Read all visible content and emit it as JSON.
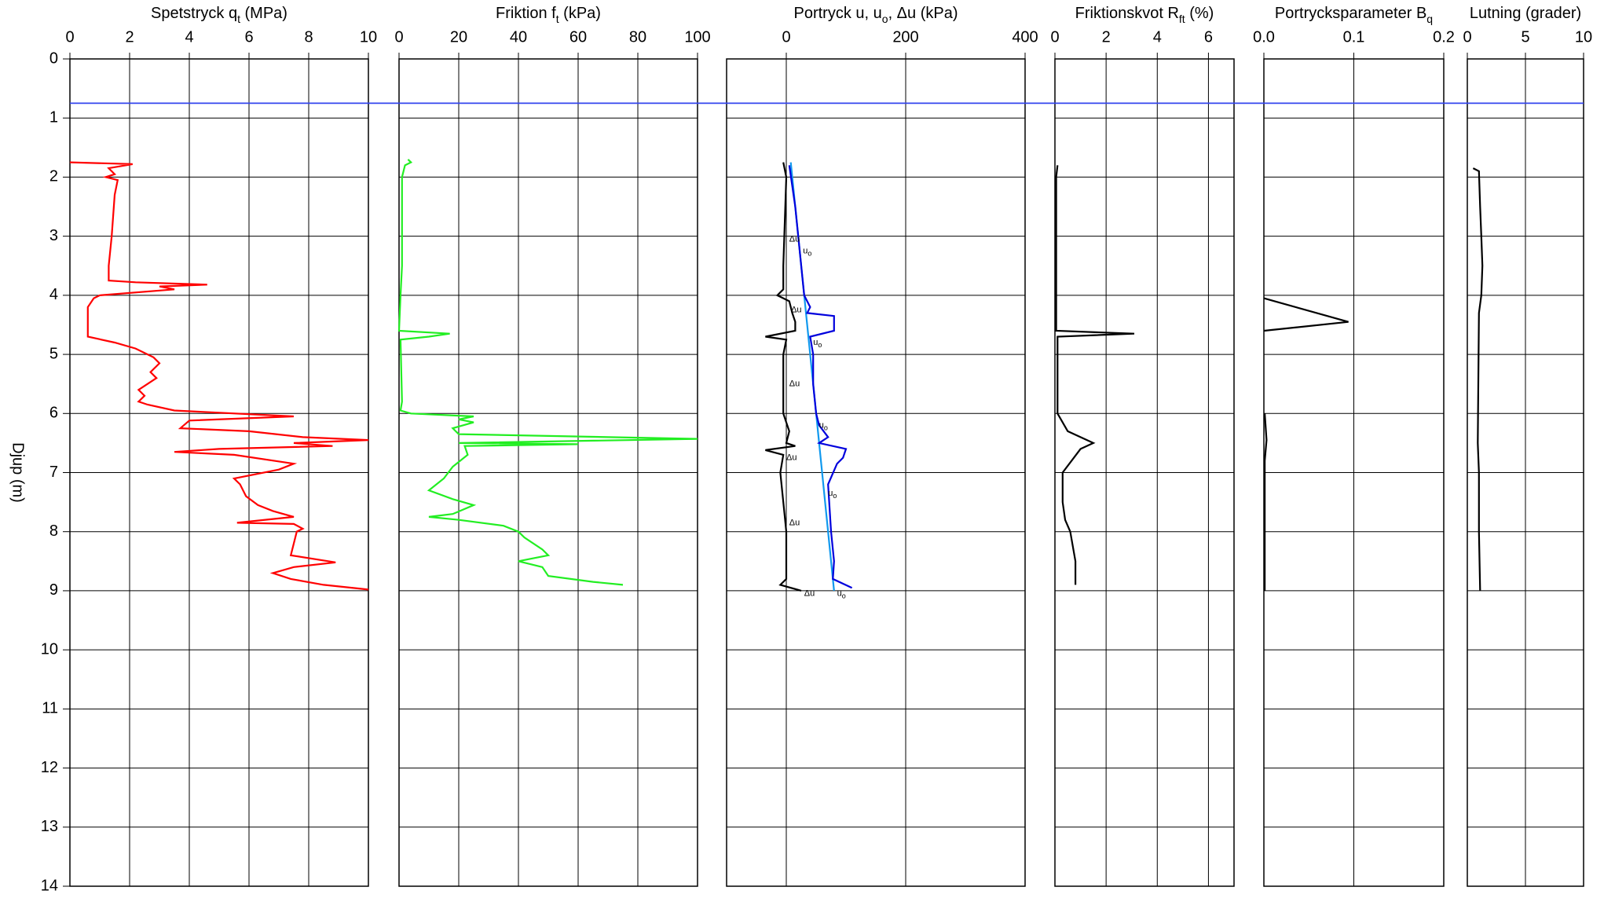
{
  "chart_data": [
    {
      "type": "line",
      "title": [
        "Spetstryck q",
        "t",
        "  (MPa)"
      ],
      "ylabel": "Djup  (m)",
      "xlim": [
        0,
        10
      ],
      "xticks": [
        0,
        2,
        4,
        6,
        8,
        10
      ],
      "ylim": [
        0,
        14
      ],
      "yticks": [
        0,
        1,
        2,
        3,
        4,
        5,
        6,
        7,
        8,
        9,
        10,
        11,
        12,
        13,
        14
      ],
      "grid": true,
      "reference_line": 0.75,
      "reference_color": "#3344ee",
      "series": [
        {
          "color": "#ff0000",
          "depth": [
            1.75,
            1.78,
            1.85,
            1.95,
            2.0,
            2.05,
            2.3,
            3.0,
            3.5,
            3.75,
            3.78,
            3.82,
            3.85,
            3.9,
            4.0,
            4.05,
            4.2,
            4.7,
            4.8,
            4.9,
            5.05,
            5.15,
            5.3,
            5.4,
            5.5,
            5.6,
            5.7,
            5.8,
            5.85,
            5.95,
            6.05,
            6.12,
            6.25,
            6.3,
            6.4,
            6.45,
            6.5,
            6.55,
            6.6,
            6.65,
            6.7,
            6.85,
            6.95,
            7.1,
            7.2,
            7.4,
            7.55,
            7.65,
            7.75,
            7.85,
            7.87,
            7.95,
            8.0,
            8.2,
            8.4,
            8.52,
            8.6,
            8.7,
            8.8,
            8.9,
            8.98
          ],
          "values": [
            0,
            2.1,
            1.3,
            1.5,
            1.2,
            1.6,
            1.5,
            1.4,
            1.3,
            1.3,
            2.2,
            4.6,
            3.0,
            3.5,
            1.0,
            0.8,
            0.6,
            0.6,
            1.5,
            2.2,
            2.8,
            3.0,
            2.7,
            2.9,
            2.6,
            2.3,
            2.5,
            2.3,
            2.6,
            3.5,
            7.5,
            4.0,
            3.7,
            6.0,
            7.8,
            10.0,
            7.5,
            8.8,
            5.0,
            3.5,
            5.5,
            7.5,
            7.0,
            5.5,
            5.7,
            5.9,
            6.3,
            6.8,
            7.5,
            5.6,
            7.5,
            7.8,
            7.6,
            7.5,
            7.4,
            8.9,
            7.5,
            6.8,
            7.4,
            8.5,
            10.0
          ]
        }
      ]
    },
    {
      "type": "line",
      "title": [
        "Friktion f",
        "t",
        "  (kPa)"
      ],
      "xlim": [
        0,
        100
      ],
      "xticks": [
        0,
        20,
        40,
        60,
        80,
        100
      ],
      "grid": true,
      "series": [
        {
          "color": "#22ee22",
          "depth": [
            1.7,
            1.75,
            1.8,
            2.0,
            3.5,
            4.0,
            4.6,
            4.65,
            4.7,
            4.75,
            5.8,
            5.95,
            6.0,
            6.05,
            6.1,
            6.15,
            6.25,
            6.35,
            6.43,
            6.5,
            6.52,
            6.55,
            6.7,
            6.9,
            7.1,
            7.3,
            7.45,
            7.55,
            7.7,
            7.75,
            7.8,
            7.9,
            8.0,
            8.1,
            8.3,
            8.4,
            8.5,
            8.6,
            8.75,
            8.85,
            8.9
          ],
          "values": [
            3,
            4,
            2,
            1,
            1,
            0.5,
            0,
            17,
            10,
            0.5,
            1,
            0.5,
            4,
            25,
            20,
            25,
            18,
            20,
            100,
            20,
            60,
            22,
            23,
            18,
            15,
            10,
            18,
            25,
            18,
            10,
            20,
            35,
            40,
            42,
            48,
            50,
            40,
            48,
            50,
            65,
            75
          ]
        }
      ]
    },
    {
      "type": "line",
      "title": [
        "Portryck u, u",
        "o",
        ", Δu  (kPa)"
      ],
      "xlim": [
        -100,
        400
      ],
      "xticks": [
        0,
        200,
        400
      ],
      "grid": true,
      "series": [
        {
          "color": "#1199ee",
          "depth": [
            1.75,
            9.0
          ],
          "values": [
            7.5,
            80
          ]
        },
        {
          "color": "#0000dd",
          "depth": [
            1.8,
            2.5,
            3.5,
            4.0,
            4.2,
            4.3,
            4.35,
            4.6,
            4.7,
            5.0,
            5.5,
            6.0,
            6.2,
            6.4,
            6.5,
            6.6,
            6.75,
            6.85,
            7.2,
            8.0,
            8.5,
            8.8,
            8.95
          ],
          "values": [
            5,
            15,
            25,
            30,
            40,
            35,
            80,
            80,
            40,
            45,
            45,
            50,
            55,
            70,
            55,
            100,
            95,
            85,
            70,
            75,
            80,
            78,
            110
          ]
        },
        {
          "color": "#000000",
          "depth": [
            1.75,
            2.0,
            3.5,
            3.9,
            4.0,
            4.1,
            4.3,
            4.45,
            4.6,
            4.7,
            4.75,
            5.0,
            6.0,
            6.3,
            6.5,
            6.55,
            6.62,
            6.7,
            7.0,
            8.0,
            8.8,
            8.9,
            9.0
          ],
          "values": [
            -5,
            0,
            -5,
            -5,
            -15,
            5,
            10,
            15,
            15,
            -35,
            0,
            -5,
            -5,
            5,
            0,
            15,
            -35,
            -5,
            -10,
            0,
            0,
            -10,
            25
          ]
        }
      ],
      "annotations": [
        {
          "text": [
            "Δu"
          ],
          "depth": 3.05,
          "value": 5
        },
        {
          "text": [
            "u",
            "o"
          ],
          "depth": 3.25,
          "value": 28
        },
        {
          "text": [
            "Δu"
          ],
          "depth": 4.25,
          "value": 8
        },
        {
          "text": [
            "u",
            "o"
          ],
          "depth": 4.8,
          "value": 45
        },
        {
          "text": [
            "Δu"
          ],
          "depth": 5.5,
          "value": 5
        },
        {
          "text": [
            "u",
            "o"
          ],
          "depth": 6.2,
          "value": 55
        },
        {
          "text": [
            "Δu"
          ],
          "depth": 6.75,
          "value": 0
        },
        {
          "text": [
            "u",
            "o"
          ],
          "depth": 7.35,
          "value": 70
        },
        {
          "text": [
            "Δu"
          ],
          "depth": 7.85,
          "value": 5
        },
        {
          "text": [
            "Δu"
          ],
          "depth": 9.05,
          "value": 30
        },
        {
          "text": [
            "u",
            "o"
          ],
          "depth": 9.05,
          "value": 85
        }
      ]
    },
    {
      "type": "line",
      "title": [
        "Friktionskvot R",
        "ft",
        "  (%)"
      ],
      "xlim": [
        0,
        7
      ],
      "xticks": [
        0,
        2,
        4,
        6
      ],
      "grid": true,
      "series": [
        {
          "color": "#000000",
          "depth": [
            1.8,
            2.0,
            4.6,
            4.65,
            4.7,
            6.0,
            6.3,
            6.5,
            6.6,
            7.0,
            7.5,
            7.8,
            8.0,
            8.5,
            8.9
          ],
          "values": [
            0.1,
            0.05,
            0.05,
            3.1,
            0.1,
            0.1,
            0.5,
            1.5,
            1.0,
            0.3,
            0.3,
            0.4,
            0.6,
            0.8,
            0.8
          ]
        }
      ]
    },
    {
      "type": "line",
      "title": [
        "Portrycksparameter B",
        "q"
      ],
      "xlim": [
        0,
        0.2
      ],
      "xticks": [
        {
          "value": 0,
          "label": "0.0"
        },
        0.1,
        0.2
      ],
      "grid": true,
      "series": [
        {
          "color": "#000000",
          "depth": [
            4.05,
            4.45,
            4.6,
            null,
            6.0,
            6.45,
            6.8,
            9.0
          ],
          "values": [
            0,
            0.094,
            0,
            null,
            0.001,
            0.003,
            0.001,
            0.001
          ]
        }
      ]
    },
    {
      "type": "line",
      "title": [
        "Lutning (grader)"
      ],
      "xlim": [
        0,
        10
      ],
      "xticks": [
        0,
        5,
        10
      ],
      "grid": true,
      "series": [
        {
          "color": "#000000",
          "depth": [
            1.85,
            1.9,
            2.5,
            3.0,
            3.5,
            4.0,
            4.3,
            6.5,
            7.0,
            8.0,
            9.0
          ],
          "values": [
            0.5,
            1.0,
            1.1,
            1.2,
            1.3,
            1.2,
            1.0,
            0.9,
            1.0,
            1.0,
            1.1
          ]
        }
      ]
    }
  ]
}
